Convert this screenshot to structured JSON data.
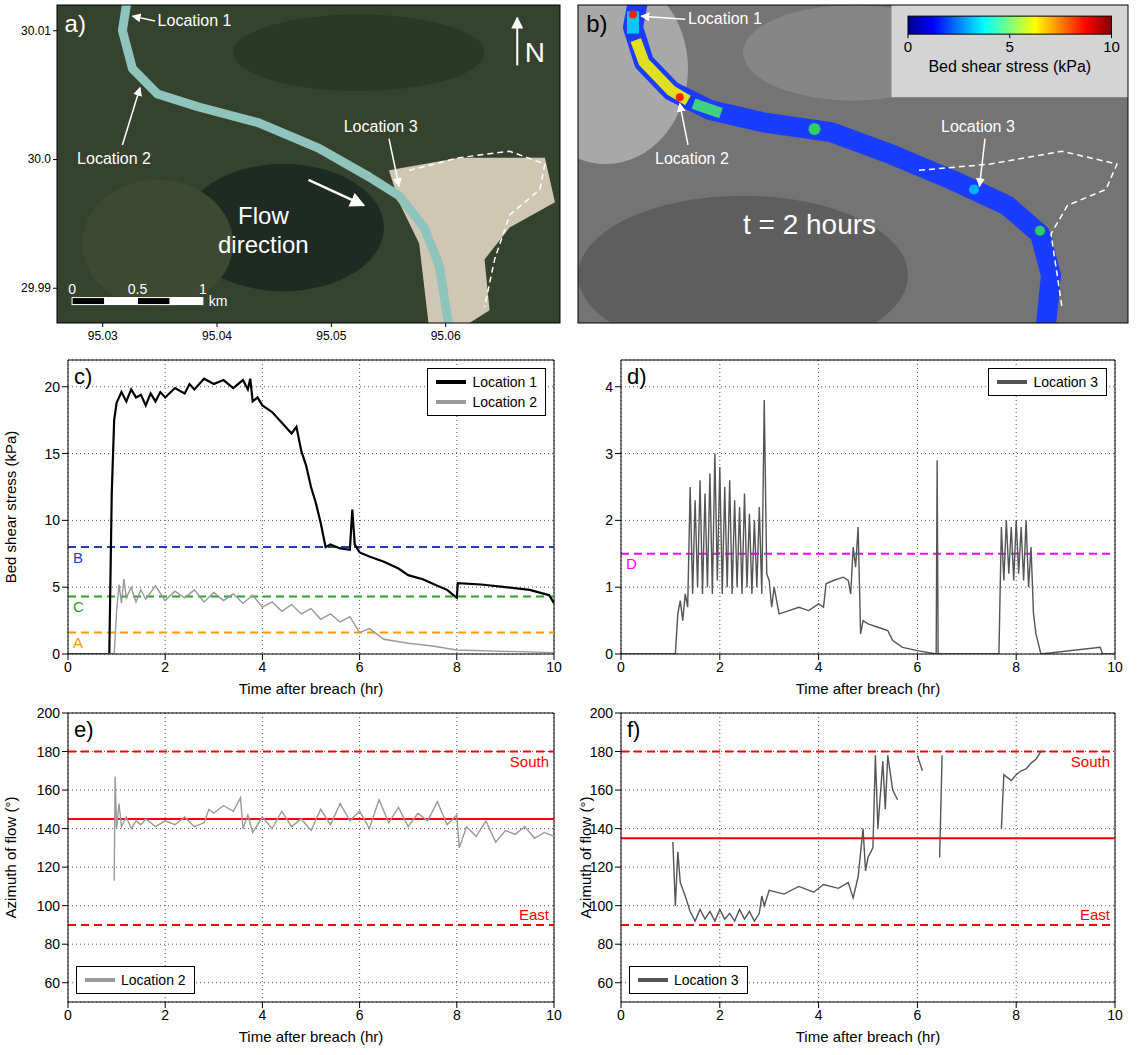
{
  "maps": [
    {
      "panel": "a)",
      "labels": [
        "Location 1",
        "Location 2",
        "Location 3"
      ],
      "annotation": "Flow direction",
      "north": "N",
      "xlim": [
        95.026,
        95.07
      ],
      "xticks": [
        95.03,
        95.04,
        95.05,
        95.06
      ],
      "ylim": [
        29.9873,
        30.012
      ],
      "yticks": [
        30.01,
        {
          "value": 30,
          "label": "30.0"
        },
        29.99
      ],
      "scale_bar": {
        "ticks": [
          0,
          0.5,
          1
        ],
        "unit": "km"
      }
    },
    {
      "panel": "b)",
      "labels": [
        "Location 1",
        "Location 2",
        "Location 3"
      ],
      "annotation": "t = 2 hours",
      "colorbar": {
        "label": "Bed shear stress (kPa)",
        "range": [
          0,
          10
        ],
        "ticks": [
          0,
          5,
          10
        ]
      }
    }
  ],
  "chart_data": [
    {
      "panel": "c)",
      "type": "line",
      "xlabel": "Time after breach (hr)",
      "ylabel": "Bed shear stress (kPa)",
      "xlim": [
        0,
        10
      ],
      "xticks": [
        0,
        2,
        4,
        6,
        8,
        10
      ],
      "ylim": [
        0,
        22
      ],
      "yticks": [
        0,
        5,
        10,
        15,
        20
      ],
      "grid": true,
      "legend": "upper right",
      "series": [
        {
          "name": "Location 1",
          "color": "#000000",
          "x": [
            0,
            0.85,
            0.9,
            0.95,
            1.0,
            1.1,
            1.2,
            1.3,
            1.4,
            1.5,
            1.6,
            1.7,
            1.8,
            1.9,
            2.0,
            2.2,
            2.4,
            2.5,
            2.6,
            2.8,
            3.0,
            3.2,
            3.4,
            3.6,
            3.7,
            3.75,
            3.8,
            3.9,
            4.0,
            4.2,
            4.4,
            4.6,
            4.7,
            4.8,
            4.9,
            5.0,
            5.1,
            5.2,
            5.3,
            5.4,
            5.6,
            5.8,
            5.85,
            5.9,
            6.0,
            6.2,
            6.5,
            6.8,
            7.0,
            7.3,
            7.6,
            7.8,
            8.0,
            8.02,
            8.5,
            9.0,
            9.5,
            9.8,
            9.9,
            10
          ],
          "values": [
            0,
            0,
            12,
            17.5,
            18.8,
            19.6,
            18.9,
            19.8,
            19.2,
            19.4,
            18.6,
            19.5,
            18.9,
            19.6,
            19.2,
            19.9,
            19.5,
            20.2,
            19.8,
            20.6,
            20.2,
            20.5,
            19.9,
            20.5,
            19.8,
            20.6,
            18.9,
            19.2,
            18.6,
            18.1,
            17.3,
            16.5,
            17.0,
            15.2,
            14.1,
            12.5,
            11.3,
            9.8,
            8.0,
            8.2,
            7.9,
            7.8,
            10.8,
            8.2,
            7.6,
            7.3,
            6.9,
            6.4,
            5.9,
            5.6,
            5.1,
            4.8,
            4.2,
            5.3,
            5.2,
            5.0,
            4.8,
            4.5,
            4.4,
            3.8
          ]
        },
        {
          "name": "Location 2",
          "color": "#999999",
          "x": [
            0,
            0.95,
            1.0,
            1.05,
            1.1,
            1.15,
            1.2,
            1.3,
            1.4,
            1.5,
            1.6,
            1.8,
            2.0,
            2.2,
            2.4,
            2.6,
            2.8,
            3.0,
            3.2,
            3.4,
            3.6,
            3.8,
            4.0,
            4.2,
            4.4,
            4.6,
            4.8,
            5.0,
            5.2,
            5.4,
            5.6,
            5.8,
            6.0,
            6.2,
            6.5,
            7.0,
            7.5,
            8.0,
            9.0,
            10
          ],
          "values": [
            0,
            0,
            3.2,
            5.2,
            3.8,
            5.6,
            4.2,
            5.0,
            3.9,
            4.8,
            4.1,
            5.1,
            4.0,
            4.7,
            4.2,
            4.8,
            3.9,
            4.6,
            4.0,
            4.5,
            3.8,
            4.4,
            3.5,
            3.9,
            3.2,
            3.7,
            3.0,
            3.4,
            2.6,
            3.0,
            2.4,
            2.8,
            1.6,
            1.9,
            1.1,
            0.8,
            0.6,
            0.3,
            0.2,
            0.1
          ]
        }
      ],
      "reference_lines": [
        {
          "label": "A",
          "value": 1.6,
          "color": "#ff9900",
          "line_style": "dashed"
        },
        {
          "label": "B",
          "value": 8.0,
          "color": "#1f3fbf",
          "line_style": "dashed"
        },
        {
          "label": "C",
          "value": 4.3,
          "color": "#2ca02c",
          "line_style": "dashed"
        }
      ]
    },
    {
      "panel": "d)",
      "type": "line",
      "xlabel": "Time after breach (hr)",
      "xlim": [
        0,
        10
      ],
      "xticks": [
        0,
        2,
        4,
        6,
        8,
        10
      ],
      "ylim": [
        0,
        4.4
      ],
      "yticks": [
        0,
        1,
        2,
        3,
        4
      ],
      "grid": true,
      "legend": "upper right",
      "series": [
        {
          "name": "Location 3",
          "color": "#555555",
          "x": [
            0,
            1.1,
            1.15,
            1.2,
            1.25,
            1.3,
            1.35,
            1.4,
            1.45,
            1.5,
            1.55,
            1.6,
            1.65,
            1.7,
            1.75,
            1.8,
            1.85,
            1.9,
            1.95,
            2.0,
            2.05,
            2.1,
            2.15,
            2.2,
            2.25,
            2.3,
            2.35,
            2.4,
            2.45,
            2.5,
            2.55,
            2.6,
            2.65,
            2.7,
            2.75,
            2.8,
            2.85,
            2.9,
            2.95,
            3.0,
            3.05,
            3.1,
            3.2,
            3.4,
            3.6,
            3.8,
            4.0,
            4.1,
            4.15,
            4.3,
            4.5,
            4.6,
            4.65,
            4.7,
            4.75,
            4.8,
            4.85,
            4.9,
            5.0,
            5.2,
            5.4,
            5.5,
            5.7,
            6.0,
            6.38,
            6.4,
            6.42,
            7.65,
            7.7,
            7.75,
            7.8,
            7.85,
            7.9,
            7.95,
            8.0,
            8.05,
            8.1,
            8.15,
            8.2,
            8.25,
            8.3,
            8.35,
            8.4,
            8.5,
            9.7,
            9.75,
            10
          ],
          "values": [
            0,
            0,
            0.6,
            0.8,
            0.5,
            0.9,
            0.7,
            2.5,
            0.9,
            2.3,
            1.0,
            2.6,
            0.9,
            2.4,
            1.0,
            2.7,
            0.9,
            3.0,
            1.1,
            2.8,
            0.9,
            2.5,
            1.0,
            2.6,
            0.9,
            2.3,
            1.0,
            2.2,
            0.9,
            2.4,
            1.0,
            2.1,
            0.9,
            2.0,
            1.0,
            2.2,
            0.9,
            3.8,
            1.2,
            1.1,
            0.7,
            1.0,
            0.6,
            0.65,
            0.7,
            0.65,
            0.75,
            0.7,
            1.05,
            1.1,
            1.15,
            1.1,
            0.9,
            1.6,
            1.3,
            1.9,
            0.3,
            0.5,
            0.45,
            0.4,
            0.35,
            0.2,
            0.1,
            0.05,
            0,
            2.9,
            0,
            0,
            1.9,
            1.1,
            2.0,
            1.2,
            1.9,
            1.1,
            2.0,
            1.2,
            1.9,
            1.1,
            2.0,
            1.0,
            1.6,
            0.6,
            0.3,
            0,
            0.1,
            0,
            0
          ]
        }
      ],
      "reference_lines": [
        {
          "label": "D",
          "value": 1.5,
          "color": "#ff00ff",
          "line_style": "dashed"
        }
      ]
    },
    {
      "panel": "e)",
      "type": "line",
      "xlabel": "Time after breach (hr)",
      "ylabel": "Azimuth of flow (°)",
      "xlim": [
        0,
        10
      ],
      "xticks": [
        0,
        2,
        4,
        6,
        8,
        10
      ],
      "ylim": [
        50,
        200
      ],
      "yticks": [
        60,
        80,
        100,
        120,
        140,
        160,
        180,
        200
      ],
      "grid": true,
      "legend": "lower left",
      "series": [
        {
          "name": "Location 2",
          "color": "#999999",
          "x": [
            0.95,
            0.97,
            1.0,
            1.05,
            1.1,
            1.2,
            1.3,
            1.4,
            1.5,
            1.6,
            1.8,
            2.0,
            2.2,
            2.4,
            2.6,
            2.8,
            2.9,
            3.0,
            3.2,
            3.4,
            3.55,
            3.6,
            3.7,
            3.8,
            4.0,
            4.2,
            4.4,
            4.6,
            4.8,
            5.0,
            5.2,
            5.4,
            5.6,
            5.8,
            6.0,
            6.2,
            6.4,
            6.6,
            6.8,
            7.0,
            7.2,
            7.4,
            7.6,
            7.8,
            8.0,
            8.05,
            8.2,
            8.4,
            8.6,
            8.8,
            9.0,
            9.2,
            9.4,
            9.6,
            9.8,
            10
          ],
          "values": [
            113,
            167,
            140,
            153,
            141,
            146,
            140,
            144,
            142,
            145,
            141,
            144,
            142,
            146,
            141,
            143,
            150,
            148,
            152,
            149,
            156,
            140,
            147,
            138,
            146,
            140,
            149,
            141,
            145,
            139,
            150,
            142,
            153,
            144,
            149,
            140,
            155,
            143,
            151,
            141,
            148,
            144,
            154,
            142,
            147,
            130,
            141,
            136,
            144,
            133,
            139,
            137,
            141,
            135,
            138,
            136
          ]
        }
      ],
      "reference_lines": [
        {
          "label": "South",
          "value": 180,
          "color": "#ff0000",
          "line_style": "dashed"
        },
        {
          "value": 145,
          "color": "#ff0000",
          "line_style": "solid"
        },
        {
          "label": "East",
          "value": 90,
          "color": "#ff0000",
          "line_style": "dashed"
        }
      ]
    },
    {
      "panel": "f)",
      "type": "line",
      "xlabel": "Time after breach (hr)",
      "ylabel": "Azimuth of flow (°)",
      "xlim": [
        0,
        10
      ],
      "xticks": [
        0,
        2,
        4,
        6,
        8,
        10
      ],
      "ylim": [
        50,
        200
      ],
      "yticks": [
        60,
        80,
        100,
        120,
        140,
        160,
        180,
        200
      ],
      "grid": true,
      "legend": "lower left",
      "series": [
        {
          "name": "Location 3",
          "color": "#555555",
          "x": [
            1.05,
            1.1,
            1.15,
            1.2,
            1.3,
            1.4,
            1.5,
            1.6,
            1.7,
            1.8,
            1.9,
            2.0,
            2.1,
            2.2,
            2.3,
            2.4,
            2.5,
            2.6,
            2.7,
            2.8,
            2.85,
            2.9,
            3.0,
            3.3,
            3.6,
            3.9,
            4.1,
            4.4,
            4.6,
            4.7,
            4.8,
            4.9,
            4.95,
            5.0,
            5.1,
            5.15,
            5.2,
            5.3,
            5.35,
            5.4,
            5.5,
            5.6,
            5.65,
            6.0,
            6.1,
            6.15,
            6.45,
            6.5,
            6.55,
            7.7,
            7.75,
            7.9,
            8.0,
            8.1,
            8.2,
            8.3,
            8.4,
            8.5,
            8.55
          ],
          "values": [
            133,
            100,
            128,
            112,
            105,
            97,
            92,
            98,
            93,
            97,
            92,
            98,
            93,
            96,
            92,
            98,
            93,
            97,
            92,
            96,
            105,
            100,
            108,
            106,
            110,
            107,
            111,
            109,
            112,
            104,
            115,
            140,
            118,
            125,
            130,
            178,
            140,
            175,
            150,
            178,
            160,
            155,
            null,
            178,
            170,
            null,
            125,
            178,
            null,
            140,
            168,
            165,
            168,
            170,
            171,
            174,
            176,
            180,
            null
          ]
        }
      ],
      "reference_lines": [
        {
          "label": "South",
          "value": 180,
          "color": "#ff0000",
          "line_style": "dashed"
        },
        {
          "value": 135,
          "color": "#ff0000",
          "line_style": "solid"
        },
        {
          "label": "East",
          "value": 90,
          "color": "#ff0000",
          "line_style": "dashed"
        }
      ]
    }
  ]
}
